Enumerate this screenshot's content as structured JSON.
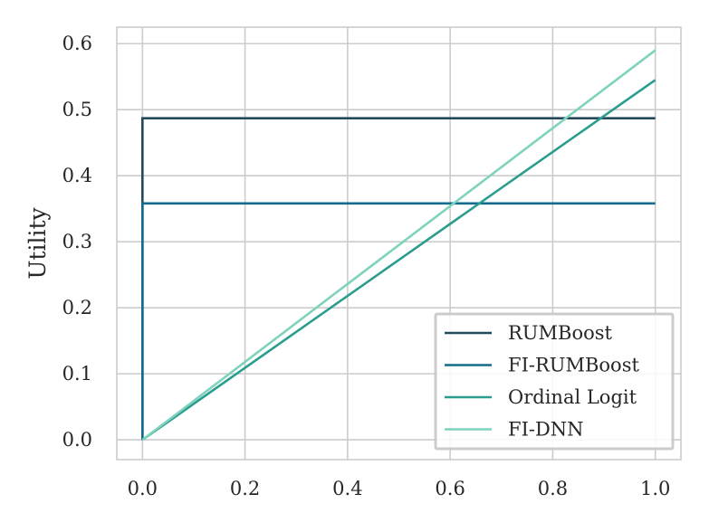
{
  "chart_data": {
    "type": "line",
    "title": "",
    "xlabel": "",
    "ylabel": "Utility",
    "xlim": [
      -0.05,
      1.05
    ],
    "ylim": [
      -0.03,
      0.625
    ],
    "xticks": [
      "0.0",
      "0.2",
      "0.4",
      "0.6",
      "0.8",
      "1.0"
    ],
    "yticks": [
      "0.0",
      "0.1",
      "0.2",
      "0.3",
      "0.4",
      "0.5",
      "0.6"
    ],
    "grid": true,
    "legend_position": "bottom-right",
    "series": [
      {
        "name": "RUMBoost",
        "color": "#23495a",
        "x": [
          0,
          0,
          1
        ],
        "y": [
          0,
          0.487,
          0.487
        ]
      },
      {
        "name": "FI-RUMBoost",
        "color": "#136b8e",
        "x": [
          0,
          0,
          1
        ],
        "y": [
          0,
          0.358,
          0.358
        ]
      },
      {
        "name": "Ordinal Logit",
        "color": "#2a9d8f",
        "x": [
          0,
          1
        ],
        "y": [
          0,
          0.545
        ]
      },
      {
        "name": "FI-DNN",
        "color": "#7fd3bd",
        "x": [
          0,
          1
        ],
        "y": [
          0,
          0.59
        ]
      }
    ]
  }
}
